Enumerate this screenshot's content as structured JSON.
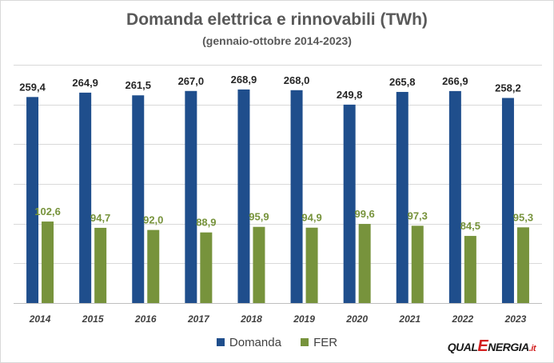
{
  "chart_data": {
    "type": "bar",
    "title": "Domanda elettrica e rinnovabili (TWh)",
    "subtitle": "(gennaio-ottobre 2014-2023)",
    "categories": [
      "2014",
      "2015",
      "2016",
      "2017",
      "2018",
      "2019",
      "2020",
      "2021",
      "2022",
      "2023"
    ],
    "series": [
      {
        "name": "Domanda",
        "color": "#1f4e8c",
        "label_color": "#262626",
        "values": [
          259.4,
          264.9,
          261.5,
          267.0,
          268.9,
          268.0,
          249.8,
          265.8,
          266.9,
          258.2
        ],
        "labels": [
          "259,4",
          "264,9",
          "261,5",
          "267,0",
          "268,9",
          "268,0",
          "249,8",
          "265,8",
          "266,9",
          "258,2"
        ]
      },
      {
        "name": "FER",
        "color": "#77933c",
        "label_color": "#77933c",
        "values": [
          102.6,
          94.7,
          92.0,
          88.9,
          95.9,
          94.9,
          99.6,
          97.3,
          84.5,
          95.3
        ],
        "labels": [
          "102,6",
          "94,7",
          "92,0",
          "88,9",
          "95,9",
          "94,9",
          "99,6",
          "97,3",
          "84,5",
          "95,3"
        ]
      }
    ],
    "ylim": [
      0,
      300
    ],
    "gridlines": [
      0,
      50,
      100,
      150,
      200,
      250,
      300
    ],
    "grid": true,
    "legend_position": "bottom"
  },
  "logo": {
    "part1": "QUAL",
    "part2": "E",
    "part3": "NERGIA",
    "part4": ".it"
  }
}
